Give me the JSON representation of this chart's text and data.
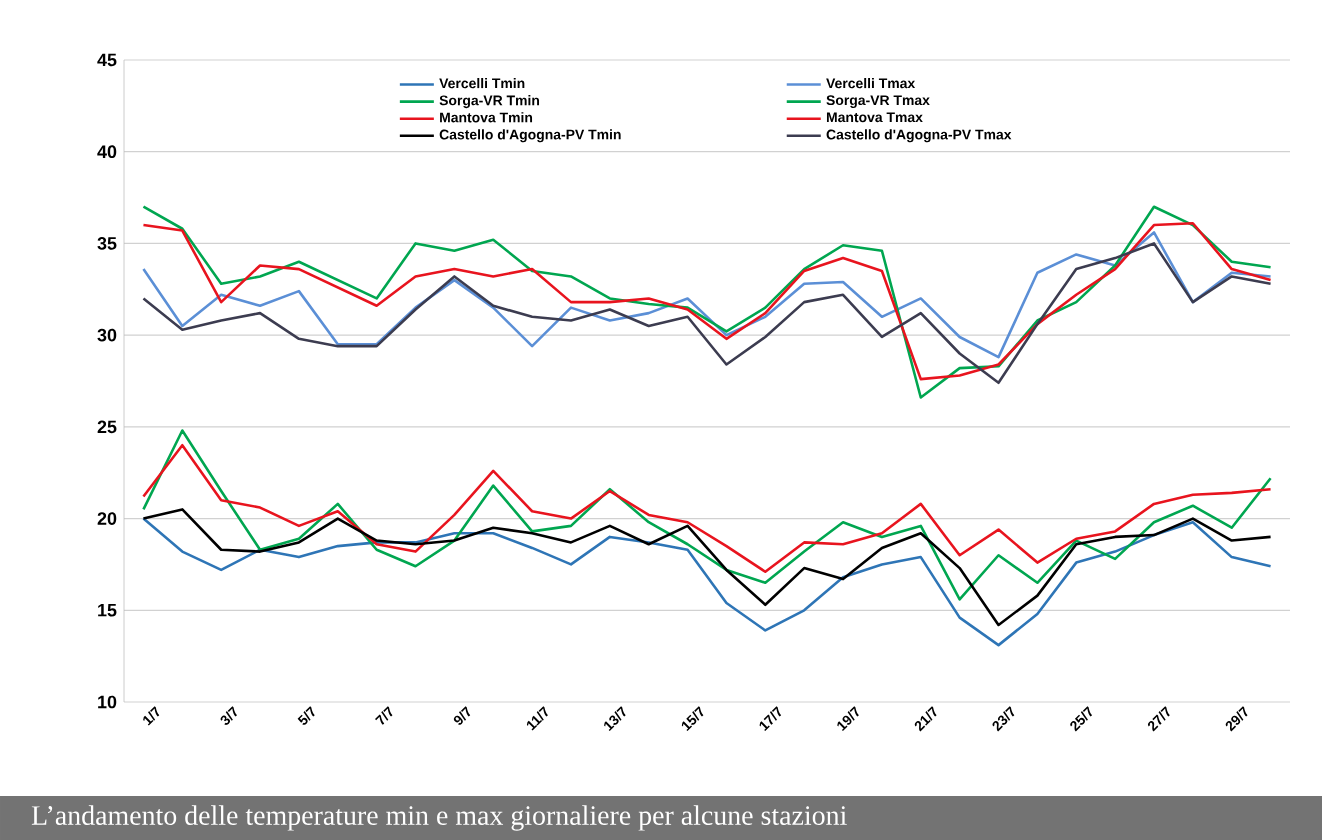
{
  "chart_data": {
    "type": "line",
    "categories": [
      "1/7",
      null,
      "3/7",
      null,
      "5/7",
      null,
      "7/7",
      null,
      "9/7",
      null,
      "11/7",
      null,
      "13/7",
      null,
      "15/7",
      null,
      "17/7",
      null,
      "19/7",
      null,
      "21/7",
      null,
      "23/7",
      null,
      "25/7",
      null,
      "27/7",
      null,
      "29/7",
      null
    ],
    "series": [
      {
        "name": "Vercelli Tmin",
        "color": "#2e75b6",
        "values": [
          20,
          18.2,
          17.2,
          18.3,
          17.9,
          18.5,
          18.7,
          18.7,
          19.2,
          19.2,
          18.4,
          17.5,
          19,
          18.7,
          18.3,
          15.4,
          13.9,
          15,
          16.8,
          17.5,
          17.9,
          14.6,
          13.1,
          14.8,
          17.6,
          18.2,
          19.1,
          19.8,
          17.9,
          17.4
        ]
      },
      {
        "name": "Vercelli Tmax",
        "color": "#5b8fd6",
        "values": [
          33.6,
          30.5,
          32.2,
          31.6,
          32.4,
          29.5,
          29.5,
          31.5,
          33,
          31.5,
          29.4,
          31.5,
          30.8,
          31.2,
          32,
          30,
          31,
          32.8,
          32.9,
          31,
          32,
          29.9,
          28.8,
          33.4,
          34.4,
          33.8,
          35.6,
          31.8,
          33.4,
          33.2
        ]
      },
      {
        "name": "Sorga-VR Tmin",
        "color": "#00a650",
        "values": [
          20.5,
          24.8,
          21.5,
          18.3,
          18.9,
          20.8,
          18.3,
          17.4,
          18.8,
          21.8,
          19.3,
          19.6,
          21.6,
          19.8,
          18.6,
          17.2,
          16.5,
          18.2,
          19.8,
          19,
          19.6,
          15.6,
          18,
          16.5,
          18.8,
          17.8,
          19.8,
          20.7,
          19.5,
          22.2
        ]
      },
      {
        "name": "Sorga-VR Tmax",
        "color": "#00a650",
        "values": [
          37,
          35.8,
          32.8,
          33.2,
          34,
          33,
          32,
          35,
          34.6,
          35.2,
          33.5,
          33.2,
          32,
          31.7,
          31.5,
          30.2,
          31.5,
          33.6,
          34.9,
          34.6,
          26.6,
          28.2,
          28.3,
          30.8,
          31.8,
          33.8,
          37,
          36,
          34,
          33.7
        ]
      },
      {
        "name": "Mantova Tmin",
        "color": "#e8141e",
        "values": [
          21.2,
          24,
          21,
          20.6,
          19.6,
          20.4,
          18.6,
          18.2,
          20.2,
          22.6,
          20.4,
          20,
          21.5,
          20.2,
          19.8,
          18.5,
          17.1,
          18.7,
          18.6,
          19.2,
          20.8,
          18,
          19.4,
          17.6,
          18.9,
          19.3,
          20.8,
          21.3,
          21.4,
          21.6
        ]
      },
      {
        "name": "Mantova Tmax",
        "color": "#e8141e",
        "values": [
          36,
          35.7,
          31.8,
          33.8,
          33.6,
          32.6,
          31.6,
          33.2,
          33.6,
          33.2,
          33.6,
          31.8,
          31.8,
          32,
          31.4,
          29.8,
          31.2,
          33.5,
          34.2,
          33.5,
          27.6,
          27.8,
          28.4,
          30.6,
          32.2,
          33.6,
          36,
          36.1,
          33.6,
          33
        ]
      },
      {
        "name": "Castello d'Agogna-PV Tmin",
        "color": "#000000",
        "values": [
          20,
          20.5,
          18.3,
          18.2,
          18.7,
          20,
          18.8,
          18.6,
          18.8,
          19.5,
          19.2,
          18.7,
          19.6,
          18.6,
          19.6,
          17.2,
          15.3,
          17.3,
          16.7,
          18.4,
          19.2,
          17.3,
          14.2,
          15.8,
          18.6,
          19,
          19.1,
          20,
          18.8,
          19
        ]
      },
      {
        "name": "Castello d'Agogna-PV Tmax",
        "color": "#3c3c50",
        "values": [
          32,
          30.3,
          30.8,
          31.2,
          29.8,
          29.4,
          29.4,
          31.4,
          33.2,
          31.6,
          31,
          30.8,
          31.4,
          30.5,
          31,
          28.4,
          29.9,
          31.8,
          32.2,
          29.9,
          31.2,
          29,
          27.4,
          30.6,
          33.6,
          34.2,
          35,
          31.8,
          33.2,
          32.8
        ]
      }
    ],
    "ylim": [
      10,
      45
    ],
    "yticks": [
      10,
      15,
      20,
      25,
      30,
      35,
      40,
      45
    ],
    "grid": "y",
    "legend": "top",
    "marker": "none",
    "line_style": "solid",
    "annotations": [
      "L’andamento delle temperature min e max giornaliere per alcune stazioni"
    ]
  }
}
